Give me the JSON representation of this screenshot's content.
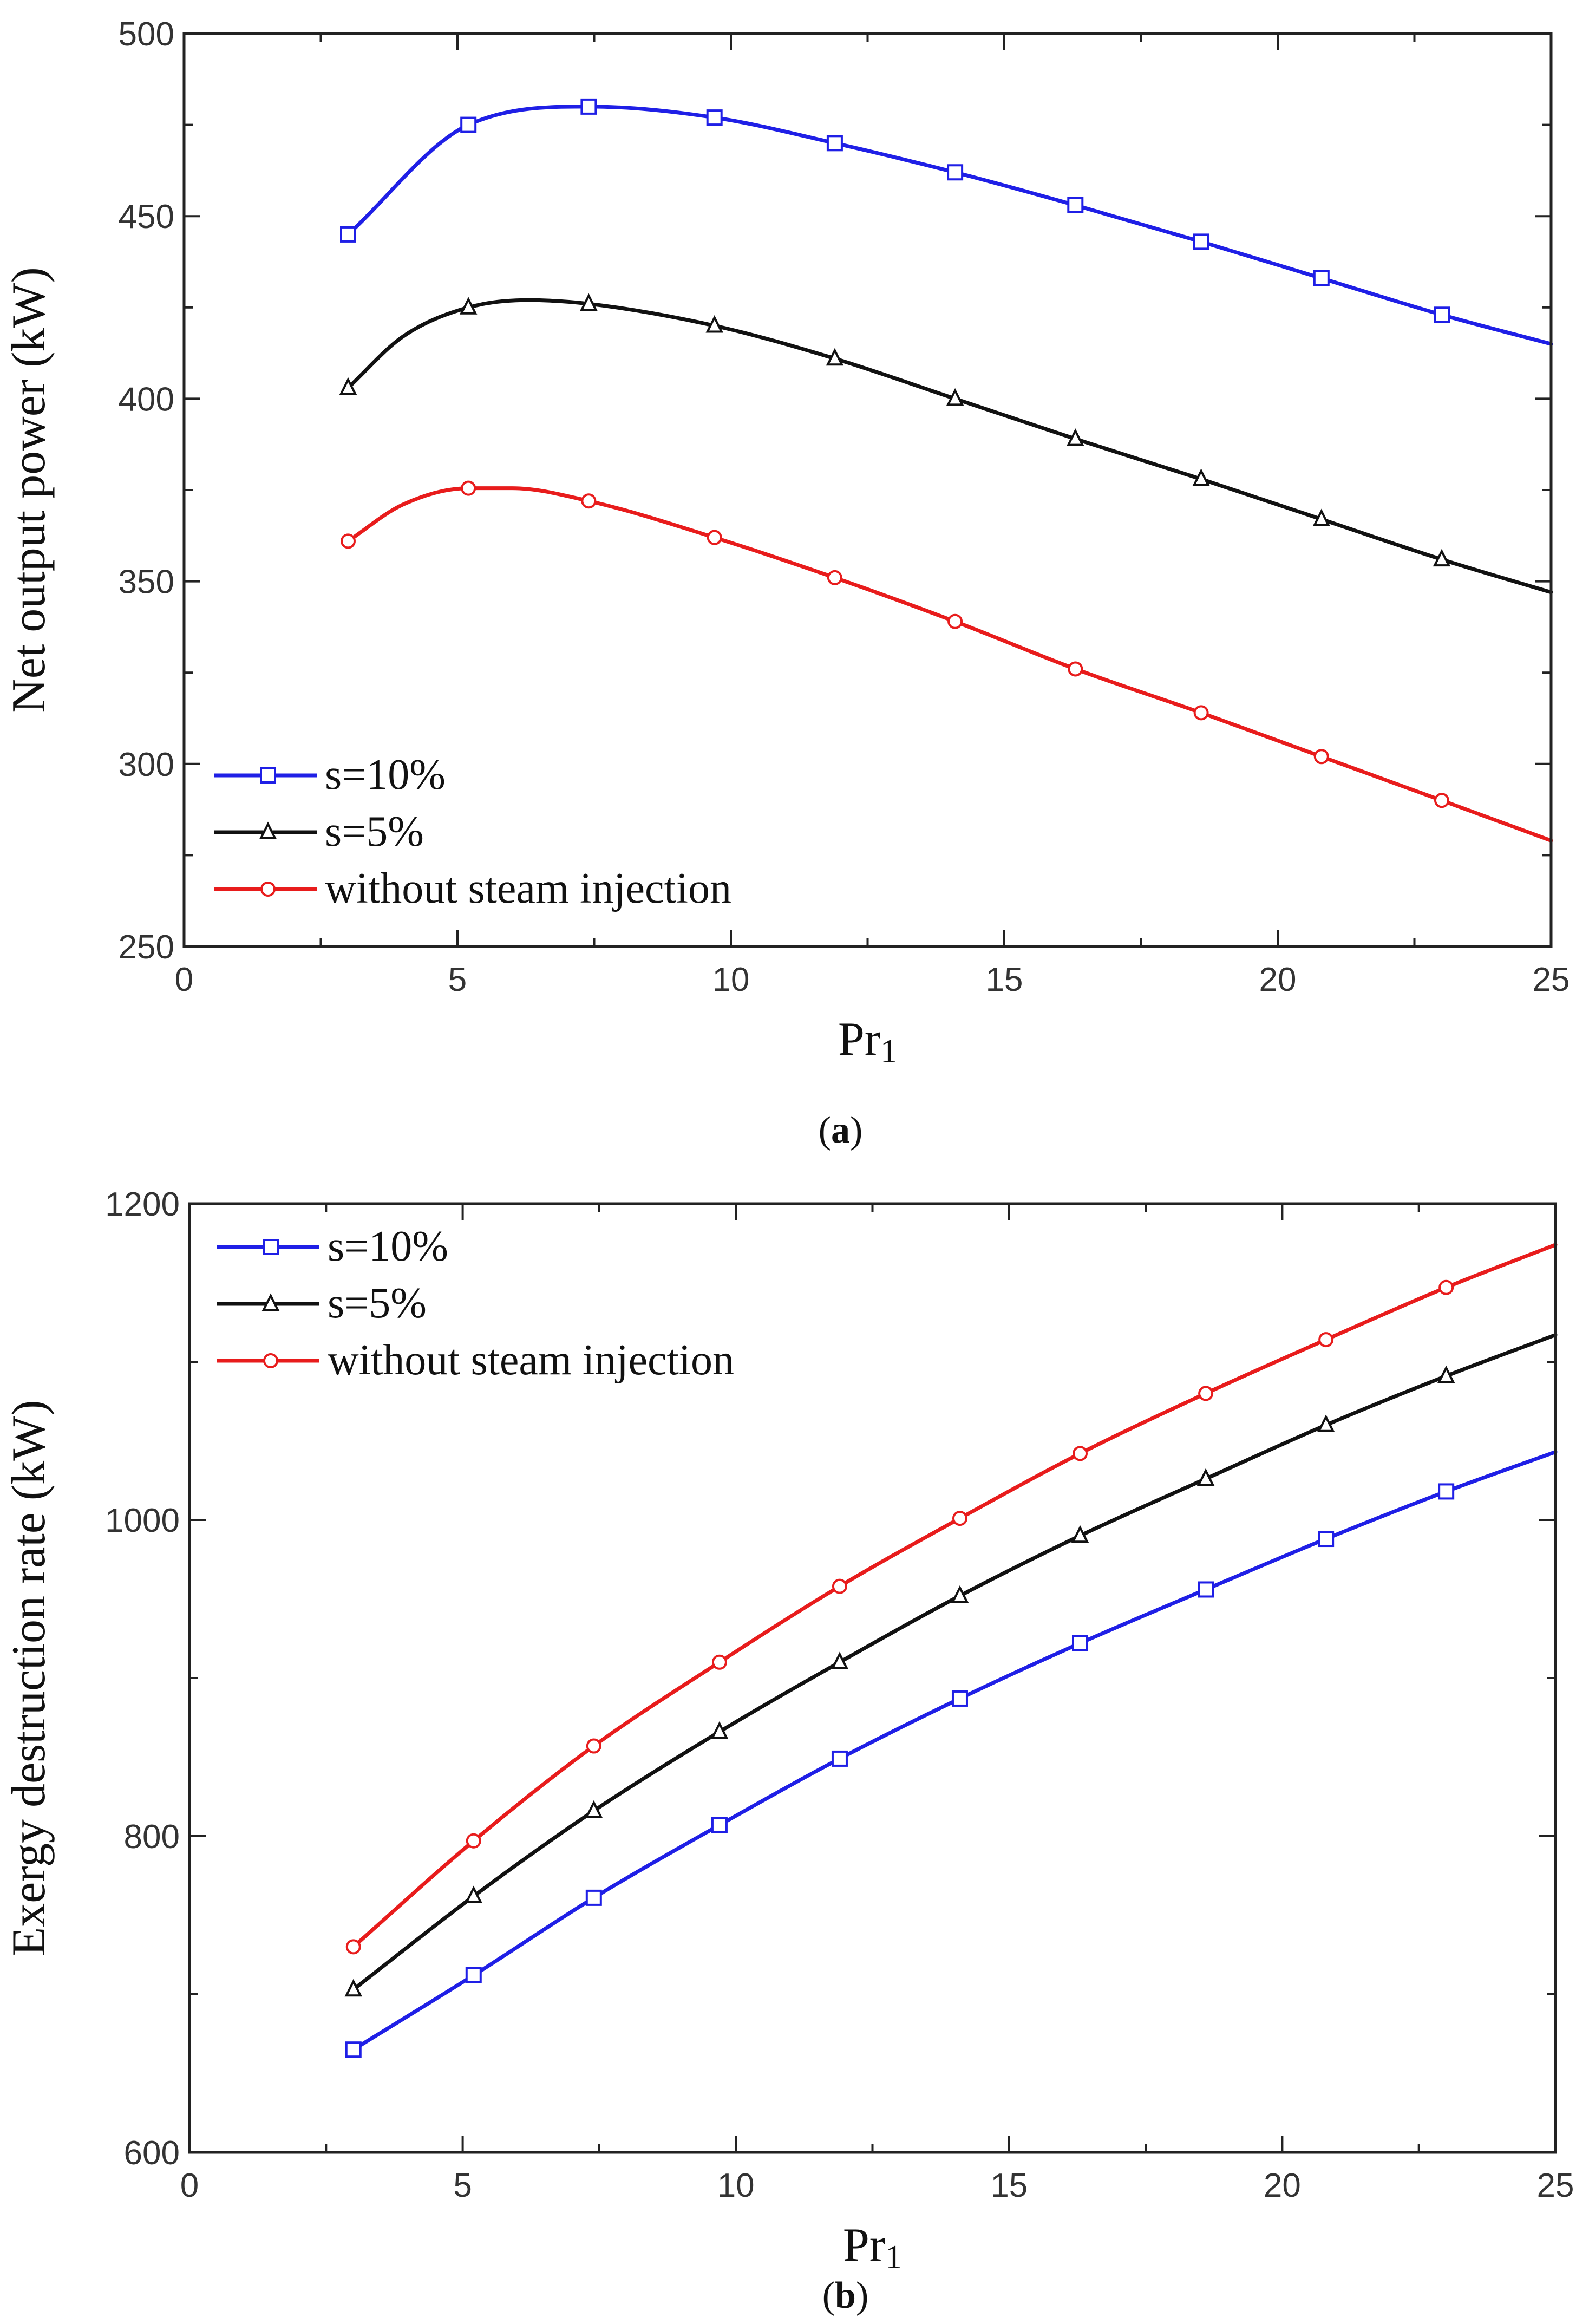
{
  "colors": {
    "s10": "#1f1fe6",
    "s5": "#111111",
    "without": "#e81c1c",
    "axis": "#222222"
  },
  "chart_data": [
    {
      "type": "line",
      "id": "a",
      "caption_letter": "a",
      "xlabel": "Pr",
      "xlabel_sub": "1",
      "ylabel": "Net output power (kW)",
      "xlim": [
        0,
        25
      ],
      "ylim": [
        250,
        500
      ],
      "xticks": [
        0,
        5,
        10,
        15,
        20,
        25
      ],
      "yticks": [
        250,
        300,
        350,
        400,
        450,
        500
      ],
      "grid": false,
      "legend_position": "bottom-left",
      "series": [
        {
          "name": "s=10%",
          "color_key": "s10",
          "marker": "square",
          "x": [
            3.0,
            5.2,
            7.4,
            9.7,
            11.9,
            14.1,
            16.3,
            18.6,
            20.8,
            23.0,
            25.0
          ],
          "y": [
            445,
            475,
            480,
            477,
            470,
            462,
            453,
            443,
            433,
            423,
            415
          ],
          "marker_count": 10
        },
        {
          "name": "s=5%",
          "color_key": "s5",
          "marker": "triangle",
          "x": [
            3.0,
            4.0,
            5.2,
            6.3,
            7.4,
            9.7,
            11.9,
            14.1,
            16.3,
            18.6,
            20.8,
            23.0,
            25.0
          ],
          "y": [
            403,
            417,
            425,
            427,
            426,
            420,
            411,
            400,
            389,
            378,
            367,
            356,
            347
          ],
          "marker_x": [
            3.0,
            5.2,
            7.4,
            9.7,
            11.9,
            14.1,
            16.3,
            18.6,
            20.8,
            23.0
          ]
        },
        {
          "name": "without steam injection",
          "color_key": "without",
          "marker": "circle",
          "x": [
            3.0,
            4.0,
            5.2,
            6.0,
            7.4,
            9.7,
            11.9,
            14.1,
            16.3,
            18.6,
            20.8,
            23.0,
            25.0
          ],
          "y": [
            361,
            371,
            375.5,
            375.5,
            372,
            362,
            351,
            339,
            326,
            314,
            302,
            290,
            279
          ],
          "marker_x": [
            3.0,
            5.2,
            7.4,
            9.7,
            11.9,
            14.1,
            16.3,
            18.6,
            20.8,
            23.0
          ]
        }
      ]
    },
    {
      "type": "line",
      "id": "b",
      "caption_letter": "b",
      "xlabel": "Pr",
      "xlabel_sub": "1",
      "ylabel": "Exergy destruction rate (kW)",
      "xlim": [
        0,
        25
      ],
      "ylim": [
        600,
        1200
      ],
      "xticks": [
        0,
        5,
        10,
        15,
        20,
        25
      ],
      "yticks": [
        600,
        800,
        1000,
        1200
      ],
      "grid": false,
      "legend_position": "top-left",
      "series": [
        {
          "name": "s=10%",
          "color_key": "s10",
          "marker": "square",
          "x": [
            3.0,
            5.2,
            7.4,
            9.7,
            11.9,
            14.1,
            16.3,
            18.6,
            20.8,
            23.0,
            25.0
          ],
          "y": [
            665,
            712,
            761,
            807,
            849,
            887,
            922,
            956,
            988,
            1018,
            1043
          ],
          "marker_count": 10
        },
        {
          "name": "s=5%",
          "color_key": "s5",
          "marker": "triangle",
          "x": [
            3.0,
            5.2,
            7.4,
            9.7,
            11.9,
            14.1,
            16.3,
            18.6,
            20.8,
            23.0,
            25.0
          ],
          "y": [
            703,
            762,
            816,
            866,
            910,
            952,
            990,
            1026,
            1060,
            1091,
            1117
          ],
          "marker_count": 10
        },
        {
          "name": "without steam injection",
          "color_key": "without",
          "marker": "circle",
          "x": [
            3.0,
            5.2,
            7.4,
            9.7,
            11.9,
            14.1,
            16.3,
            18.6,
            20.8,
            23.0,
            25.0
          ],
          "y": [
            730,
            797,
            857,
            910,
            958,
            1001,
            1042,
            1080,
            1114,
            1147,
            1174
          ],
          "marker_count": 10
        }
      ]
    }
  ]
}
